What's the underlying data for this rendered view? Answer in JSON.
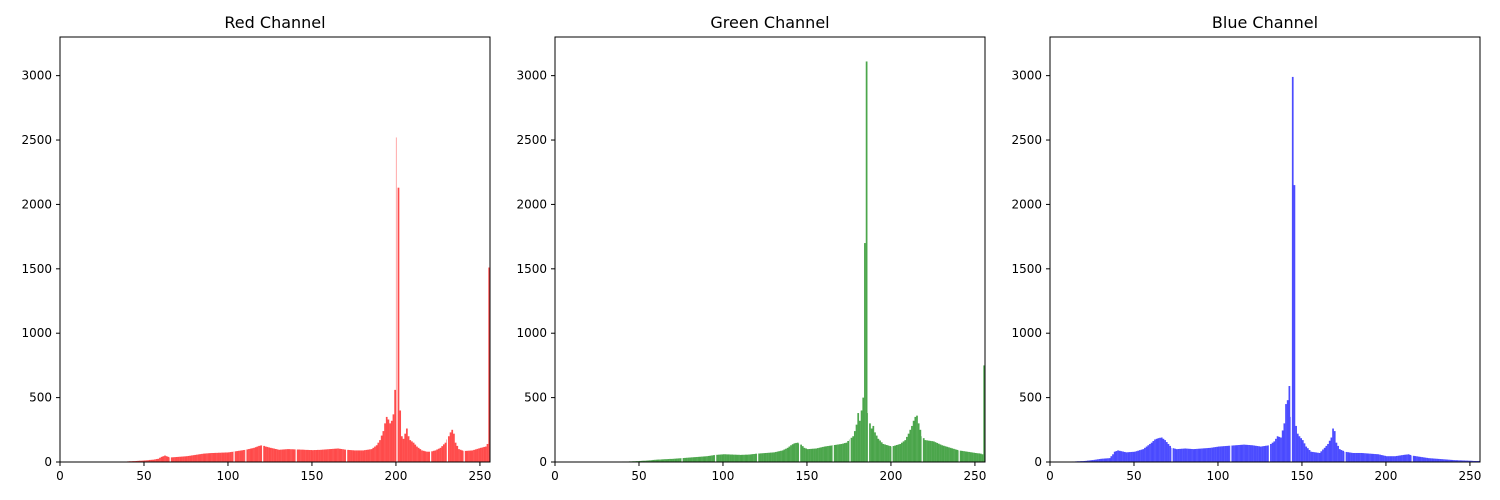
{
  "chart_data": [
    {
      "type": "bar",
      "title": "Red Channel",
      "color": "#ff0000",
      "alpha": 0.7,
      "xlim": [
        0,
        256
      ],
      "ylim": [
        0,
        3300
      ],
      "xticks": [
        0,
        50,
        100,
        150,
        200,
        250
      ],
      "yticks": [
        0,
        500,
        1000,
        1500,
        2000,
        2500,
        3000
      ],
      "series": [
        {
          "profile": [
            [
              0,
              0
            ],
            [
              38,
              0
            ],
            [
              40,
              5
            ],
            [
              45,
              8
            ],
            [
              50,
              12
            ],
            [
              55,
              18
            ],
            [
              58,
              25
            ],
            [
              60,
              40
            ],
            [
              62,
              50
            ],
            [
              63,
              45
            ],
            [
              65,
              35
            ],
            [
              70,
              40
            ],
            [
              75,
              45
            ],
            [
              80,
              55
            ],
            [
              85,
              65
            ],
            [
              90,
              70
            ],
            [
              95,
              72
            ],
            [
              100,
              75
            ],
            [
              105,
              85
            ],
            [
              110,
              95
            ],
            [
              115,
              110
            ],
            [
              118,
              125
            ],
            [
              120,
              130
            ],
            [
              122,
              120
            ],
            [
              125,
              110
            ],
            [
              130,
              95
            ],
            [
              135,
              100
            ],
            [
              140,
              98
            ],
            [
              145,
              95
            ],
            [
              150,
              92
            ],
            [
              155,
              95
            ],
            [
              160,
              100
            ],
            [
              165,
              105
            ],
            [
              170,
              95
            ],
            [
              175,
              90
            ],
            [
              180,
              90
            ],
            [
              185,
              100
            ],
            [
              188,
              130
            ],
            [
              190,
              170
            ],
            [
              192,
              240
            ],
            [
              193,
              300
            ],
            [
              194,
              350
            ],
            [
              195,
              330
            ],
            [
              196,
              300
            ],
            [
              197,
              320
            ],
            [
              198,
              370
            ],
            [
              199,
              560
            ],
            [
              200,
              2520
            ],
            [
              201,
              2130
            ],
            [
              202,
              400
            ],
            [
              203,
              200
            ],
            [
              204,
              180
            ],
            [
              205,
              220
            ],
            [
              206,
              260
            ],
            [
              207,
              200
            ],
            [
              208,
              170
            ],
            [
              210,
              150
            ],
            [
              212,
              120
            ],
            [
              215,
              90
            ],
            [
              218,
              80
            ],
            [
              220,
              80
            ],
            [
              223,
              90
            ],
            [
              226,
              110
            ],
            [
              229,
              150
            ],
            [
              231,
              200
            ],
            [
              232,
              230
            ],
            [
              233,
              250
            ],
            [
              234,
              220
            ],
            [
              235,
              150
            ],
            [
              237,
              100
            ],
            [
              240,
              85
            ],
            [
              245,
              90
            ],
            [
              250,
              110
            ],
            [
              253,
              120
            ],
            [
              254,
              140
            ],
            [
              255,
              1510
            ]
          ],
          "gaps": [
            65,
            103,
            110,
            120,
            140,
            170,
            200,
            220,
            230,
            240
          ]
        }
      ]
    },
    {
      "type": "bar",
      "title": "Green Channel",
      "color": "#008000",
      "alpha": 0.7,
      "xlim": [
        0,
        256
      ],
      "ylim": [
        0,
        3300
      ],
      "xticks": [
        0,
        50,
        100,
        150,
        200,
        250
      ],
      "yticks": [
        0,
        500,
        1000,
        1500,
        2000,
        2500,
        3000
      ],
      "series": [
        {
          "profile": [
            [
              0,
              0
            ],
            [
              35,
              0
            ],
            [
              38,
              3
            ],
            [
              45,
              5
            ],
            [
              50,
              8
            ],
            [
              55,
              12
            ],
            [
              60,
              18
            ],
            [
              70,
              25
            ],
            [
              80,
              35
            ],
            [
              90,
              45
            ],
            [
              95,
              55
            ],
            [
              100,
              60
            ],
            [
              105,
              58
            ],
            [
              110,
              55
            ],
            [
              115,
              58
            ],
            [
              120,
              65
            ],
            [
              125,
              70
            ],
            [
              130,
              75
            ],
            [
              135,
              90
            ],
            [
              138,
              110
            ],
            [
              140,
              130
            ],
            [
              142,
              145
            ],
            [
              144,
              150
            ],
            [
              146,
              135
            ],
            [
              148,
              110
            ],
            [
              150,
              100
            ],
            [
              155,
              105
            ],
            [
              160,
              120
            ],
            [
              165,
              130
            ],
            [
              170,
              140
            ],
            [
              173,
              150
            ],
            [
              175,
              175
            ],
            [
              177,
              200
            ],
            [
              178,
              240
            ],
            [
              179,
              290
            ],
            [
              180,
              380
            ],
            [
              181,
              320
            ],
            [
              182,
              400
            ],
            [
              183,
              500
            ],
            [
              184,
              1700
            ],
            [
              185,
              3110
            ],
            [
              186,
              380
            ],
            [
              187,
              300
            ],
            [
              188,
              260
            ],
            [
              189,
              280
            ],
            [
              190,
              230
            ],
            [
              192,
              180
            ],
            [
              195,
              140
            ],
            [
              200,
              120
            ],
            [
              205,
              140
            ],
            [
              208,
              170
            ],
            [
              210,
              220
            ],
            [
              212,
              280
            ],
            [
              213,
              320
            ],
            [
              214,
              350
            ],
            [
              215,
              360
            ],
            [
              216,
              300
            ],
            [
              218,
              200
            ],
            [
              220,
              170
            ],
            [
              225,
              160
            ],
            [
              230,
              130
            ],
            [
              235,
              110
            ],
            [
              240,
              90
            ],
            [
              245,
              80
            ],
            [
              250,
              70
            ],
            [
              253,
              65
            ],
            [
              254,
              60
            ],
            [
              255,
              750
            ]
          ],
          "gaps": [
            75,
            95,
            120,
            145,
            165,
            175,
            186,
            200,
            218,
            240
          ]
        }
      ]
    },
    {
      "type": "bar",
      "title": "Blue Channel",
      "color": "#0000ff",
      "alpha": 0.7,
      "xlim": [
        0,
        256
      ],
      "ylim": [
        0,
        3300
      ],
      "xticks": [
        0,
        50,
        100,
        150,
        200,
        250
      ],
      "yticks": [
        0,
        500,
        1000,
        1500,
        2000,
        2500,
        3000
      ],
      "series": [
        {
          "profile": [
            [
              0,
              0
            ],
            [
              10,
              0
            ],
            [
              12,
              3
            ],
            [
              15,
              5
            ],
            [
              20,
              8
            ],
            [
              25,
              15
            ],
            [
              30,
              25
            ],
            [
              35,
              30
            ],
            [
              37,
              60
            ],
            [
              38,
              80
            ],
            [
              40,
              90
            ],
            [
              45,
              75
            ],
            [
              50,
              80
            ],
            [
              55,
              100
            ],
            [
              58,
              130
            ],
            [
              60,
              150
            ],
            [
              62,
              175
            ],
            [
              64,
              185
            ],
            [
              66,
              190
            ],
            [
              68,
              170
            ],
            [
              70,
              140
            ],
            [
              72,
              110
            ],
            [
              75,
              100
            ],
            [
              80,
              105
            ],
            [
              85,
              100
            ],
            [
              90,
              105
            ],
            [
              95,
              110
            ],
            [
              100,
              120
            ],
            [
              105,
              125
            ],
            [
              110,
              130
            ],
            [
              115,
              135
            ],
            [
              120,
              130
            ],
            [
              125,
              120
            ],
            [
              130,
              130
            ],
            [
              133,
              160
            ],
            [
              135,
              200
            ],
            [
              137,
              190
            ],
            [
              139,
              300
            ],
            [
              140,
              450
            ],
            [
              141,
              480
            ],
            [
              142,
              590
            ],
            [
              143,
              350
            ],
            [
              144,
              2990
            ],
            [
              145,
              2150
            ],
            [
              146,
              280
            ],
            [
              147,
              220
            ],
            [
              148,
              200
            ],
            [
              150,
              170
            ],
            [
              152,
              120
            ],
            [
              155,
              80
            ],
            [
              160,
              70
            ],
            [
              163,
              110
            ],
            [
              165,
              140
            ],
            [
              167,
              190
            ],
            [
              168,
              260
            ],
            [
              169,
              240
            ],
            [
              170,
              150
            ],
            [
              172,
              100
            ],
            [
              175,
              80
            ],
            [
              180,
              70
            ],
            [
              185,
              70
            ],
            [
              190,
              65
            ],
            [
              195,
              60
            ],
            [
              200,
              45
            ],
            [
              205,
              45
            ],
            [
              210,
              55
            ],
            [
              213,
              60
            ],
            [
              215,
              50
            ],
            [
              220,
              40
            ],
            [
              225,
              30
            ],
            [
              230,
              25
            ],
            [
              235,
              20
            ],
            [
              240,
              15
            ],
            [
              245,
              12
            ],
            [
              250,
              10
            ],
            [
              252,
              8
            ],
            [
              255,
              8
            ]
          ],
          "gaps": [
            72,
            107,
            130,
            143,
            175,
            215
          ]
        }
      ]
    }
  ]
}
